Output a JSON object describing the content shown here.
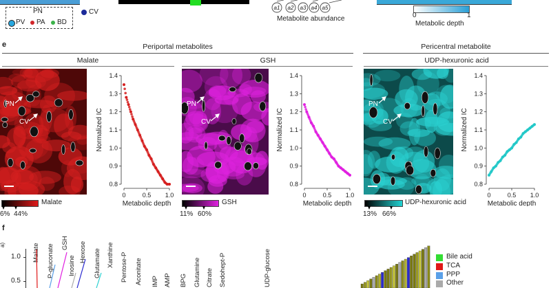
{
  "top": {
    "pn_box_label": "PN",
    "pv_label": "PV",
    "pa_label": "PA",
    "bd_label": "BD",
    "cv_label": "CV",
    "metabolite_abundance_label": "Metabolite abundance",
    "nodes": [
      "a1",
      "a2",
      "a3",
      "a4",
      "a5"
    ],
    "colorbar_min": "0",
    "colorbar_max": "1",
    "colorbar_label": "Metabolic depth",
    "colors": {
      "pv": "#29a8e0",
      "pa": "#d1262a",
      "bd": "#3cb24a",
      "cv": "#1c2b9a"
    }
  },
  "panel_e": {
    "letter": "e",
    "periportal_title": "Periportal metabolites",
    "pericentral_title": "Pericentral metabolite",
    "panels": [
      {
        "name": "Malate",
        "color": "#d51f1f",
        "pn_label": "PN",
        "cv_label": "CV",
        "scale_low": "6%",
        "scale_high": "44%",
        "bar_label": "Malate"
      },
      {
        "name": "GSH",
        "color": "#e020e0",
        "pn_label": "PN",
        "cv_label": "CV",
        "scale_low": "11%",
        "scale_high": "60%",
        "bar_label": "GSH"
      },
      {
        "name": "UDP-hexuronic acid",
        "color": "#22c8c8",
        "pn_label": "PN",
        "cv_label": "CV",
        "scale_low": "13%",
        "scale_high": "66%",
        "bar_label": "UDP-hexuronic acid"
      }
    ]
  },
  "chart_data": [
    {
      "type": "scatter",
      "title": "Malate",
      "xlabel": "Metabolic depth",
      "ylabel": "Normalized IC",
      "xlim": [
        0,
        1
      ],
      "ylim": [
        0.8,
        1.4
      ],
      "xticks": [
        "0",
        "0.5",
        "1.0"
      ],
      "yticks": [
        "0.8",
        "0.9",
        "1.0",
        "1.1",
        "1.2",
        "1.3",
        "1.4"
      ],
      "x": [
        0.0,
        0.05,
        0.1,
        0.15,
        0.2,
        0.25,
        0.3,
        0.35,
        0.4,
        0.45,
        0.5,
        0.55,
        0.6,
        0.65,
        0.7,
        0.75,
        0.8,
        0.85,
        0.9,
        0.95,
        1.0
      ],
      "y": [
        1.35,
        1.28,
        1.24,
        1.2,
        1.16,
        1.13,
        1.1,
        1.07,
        1.04,
        1.01,
        0.99,
        0.96,
        0.94,
        0.91,
        0.89,
        0.87,
        0.85,
        0.83,
        0.81,
        0.8,
        0.8
      ]
    },
    {
      "type": "scatter",
      "title": "GSH",
      "xlabel": "Metabolic depth",
      "ylabel": "Normalized IC",
      "xlim": [
        0,
        1
      ],
      "ylim": [
        0.8,
        1.4
      ],
      "xticks": [
        "0",
        "0.5",
        "1.0"
      ],
      "yticks": [
        "0.8",
        "0.9",
        "1.0",
        "1.1",
        "1.2",
        "1.3",
        "1.4"
      ],
      "x": [
        0.0,
        0.05,
        0.1,
        0.15,
        0.2,
        0.25,
        0.3,
        0.35,
        0.4,
        0.45,
        0.5,
        0.55,
        0.6,
        0.65,
        0.7,
        0.75,
        0.8,
        0.85,
        0.9,
        0.95,
        1.0
      ],
      "y": [
        1.24,
        1.2,
        1.17,
        1.14,
        1.12,
        1.09,
        1.07,
        1.05,
        1.03,
        1.01,
        0.99,
        0.97,
        0.95,
        0.94,
        0.92,
        0.9,
        0.89,
        0.88,
        0.87,
        0.86,
        0.85
      ]
    },
    {
      "type": "scatter",
      "title": "UDP-hexuronic acid",
      "xlabel": "Metabolic depth",
      "ylabel": "Normalized IC",
      "xlim": [
        0,
        1
      ],
      "ylim": [
        0.8,
        1.4
      ],
      "xticks": [
        "0",
        "0.5",
        "1.0"
      ],
      "yticks": [
        "0.8",
        "0.9",
        "1.0",
        "1.1",
        "1.2",
        "1.3",
        "1.4"
      ],
      "x": [
        0.0,
        0.05,
        0.1,
        0.15,
        0.2,
        0.25,
        0.3,
        0.35,
        0.4,
        0.45,
        0.5,
        0.55,
        0.6,
        0.65,
        0.7,
        0.75,
        0.8,
        0.85,
        0.9,
        0.95,
        1.0
      ],
      "y": [
        0.85,
        0.87,
        0.89,
        0.9,
        0.92,
        0.93,
        0.95,
        0.96,
        0.98,
        0.99,
        1.0,
        1.02,
        1.03,
        1.05,
        1.06,
        1.08,
        1.09,
        1.1,
        1.11,
        1.12,
        1.13
      ]
    }
  ],
  "panel_f": {
    "letter": "f",
    "yticks": [
      "1.0",
      "0.5"
    ],
    "ylabel": "a)",
    "metabolites": [
      "Malate",
      "P-gluconate",
      "GSH",
      "Inosine",
      "Hexose",
      "Glutamate",
      "Xanthine",
      "Pentose-P",
      "Aconitate",
      "IMP",
      "AMP",
      "BPG",
      "Glutamine",
      "Citrate",
      "Sedohept-P",
      "UDP-glucose"
    ],
    "legend": [
      {
        "label": "Bile acid",
        "color": "#33dd33"
      },
      {
        "label": "TCA",
        "color": "#e01818"
      },
      {
        "label": "PPP",
        "color": "#5aa0e8"
      },
      {
        "label": "Other",
        "color": "#aaaaaa"
      }
    ]
  }
}
